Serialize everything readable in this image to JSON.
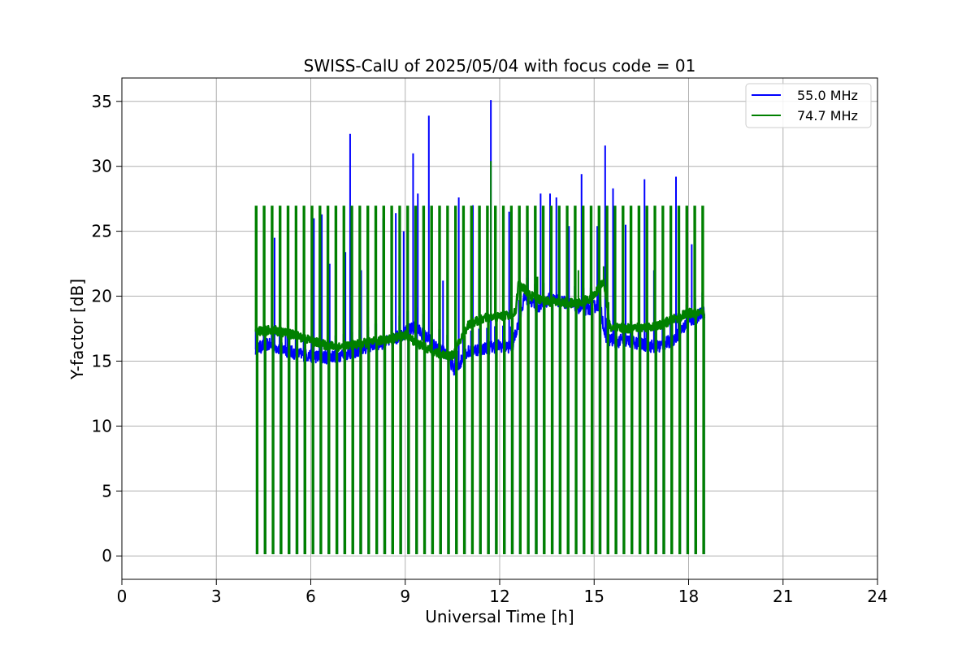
{
  "chart_data": {
    "type": "line",
    "title": "SWISS-CalU of 2025/05/04 with focus code = 01",
    "xlabel": "Universal Time [h]",
    "ylabel": "Y-factor [dB]",
    "xlim": [
      0,
      24
    ],
    "ylim": [
      -1.8,
      36.8
    ],
    "xticks": [
      0,
      3,
      6,
      9,
      12,
      15,
      18,
      21,
      24
    ],
    "yticks": [
      0,
      5,
      10,
      15,
      20,
      25,
      30,
      35
    ],
    "grid": true,
    "legend_position": "top-right",
    "series": [
      {
        "name": "55.0 MHz",
        "color": "#0000ff",
        "baseline": {
          "x": [
            4.25,
            4.6,
            5.0,
            5.5,
            6.0,
            6.5,
            7.0,
            7.5,
            8.0,
            8.5,
            9.0,
            9.3,
            9.6,
            10.0,
            10.3,
            10.6,
            10.9,
            11.2,
            11.6,
            12.0,
            12.4,
            12.8,
            13.2,
            13.6,
            14.0,
            14.4,
            14.8,
            15.2,
            15.35,
            15.7,
            16.0,
            16.5,
            17.0,
            17.5,
            18.0,
            18.5
          ],
          "y": [
            15.9,
            16.3,
            16.0,
            15.6,
            15.4,
            15.3,
            15.5,
            15.8,
            16.3,
            16.5,
            17.2,
            17.6,
            17.0,
            16.0,
            15.6,
            14.2,
            15.6,
            15.9,
            16.0,
            16.2,
            16.1,
            20.0,
            19.2,
            19.8,
            19.6,
            19.2,
            19.0,
            19.4,
            16.8,
            16.5,
            16.6,
            16.3,
            16.1,
            16.6,
            18.0,
            18.8
          ]
        },
        "spikes": [
          {
            "x": 4.35,
            "y": 16.4
          },
          {
            "x": 4.85,
            "y": 24.5
          },
          {
            "x": 5.2,
            "y": 17.3
          },
          {
            "x": 6.1,
            "y": 26.0
          },
          {
            "x": 6.35,
            "y": 26.3
          },
          {
            "x": 6.6,
            "y": 22.5
          },
          {
            "x": 7.1,
            "y": 23.4
          },
          {
            "x": 7.25,
            "y": 32.5
          },
          {
            "x": 7.6,
            "y": 22.0
          },
          {
            "x": 8.3,
            "y": 26.0
          },
          {
            "x": 8.7,
            "y": 26.4
          },
          {
            "x": 8.95,
            "y": 25.0
          },
          {
            "x": 9.25,
            "y": 31.0
          },
          {
            "x": 9.4,
            "y": 27.9
          },
          {
            "x": 9.75,
            "y": 33.9
          },
          {
            "x": 10.2,
            "y": 21.2
          },
          {
            "x": 10.7,
            "y": 27.6
          },
          {
            "x": 11.15,
            "y": 27.0
          },
          {
            "x": 11.72,
            "y": 35.1
          },
          {
            "x": 12.3,
            "y": 26.5
          },
          {
            "x": 12.9,
            "y": 25.0
          },
          {
            "x": 13.3,
            "y": 27.9
          },
          {
            "x": 13.6,
            "y": 27.9
          },
          {
            "x": 13.8,
            "y": 27.6
          },
          {
            "x": 14.2,
            "y": 25.4
          },
          {
            "x": 14.6,
            "y": 29.4
          },
          {
            "x": 15.1,
            "y": 25.4
          },
          {
            "x": 15.35,
            "y": 31.6
          },
          {
            "x": 15.6,
            "y": 28.3
          },
          {
            "x": 16.0,
            "y": 25.5
          },
          {
            "x": 16.6,
            "y": 29.0
          },
          {
            "x": 16.9,
            "y": 22.0
          },
          {
            "x": 17.2,
            "y": 24.3
          },
          {
            "x": 17.6,
            "y": 29.2
          },
          {
            "x": 18.1,
            "y": 24.0
          }
        ]
      },
      {
        "name": "74.7 MHz",
        "color": "#008000",
        "baseline": {
          "x": [
            4.25,
            4.8,
            5.5,
            6.0,
            6.5,
            7.0,
            7.5,
            8.0,
            8.5,
            9.0,
            9.5,
            10.0,
            10.5,
            11.0,
            11.5,
            12.0,
            12.5,
            12.6,
            13.0,
            13.5,
            14.0,
            14.5,
            15.0,
            15.3,
            15.5,
            16.0,
            16.5,
            17.0,
            17.5,
            18.0,
            18.5
          ],
          "y": [
            17.3,
            17.4,
            17.0,
            16.6,
            16.2,
            16.1,
            16.3,
            16.5,
            16.7,
            17.0,
            16.2,
            15.6,
            15.4,
            17.8,
            18.3,
            18.4,
            18.7,
            21.0,
            20.0,
            19.6,
            19.5,
            19.4,
            20.0,
            21.3,
            17.6,
            17.5,
            17.6,
            17.7,
            18.2,
            18.7,
            18.6
          ]
        },
        "calibration_pulses": {
          "start": 4.25,
          "step": 0.2533,
          "count": 57,
          "high": 26.9,
          "low": 0.2
        },
        "spikes": [
          {
            "x": 11.72,
            "y": 30.4
          },
          {
            "x": 12.7,
            "y": 21.0
          },
          {
            "x": 13.2,
            "y": 21.5
          },
          {
            "x": 14.5,
            "y": 22.0
          },
          {
            "x": 15.3,
            "y": 22.3
          }
        ]
      }
    ]
  }
}
